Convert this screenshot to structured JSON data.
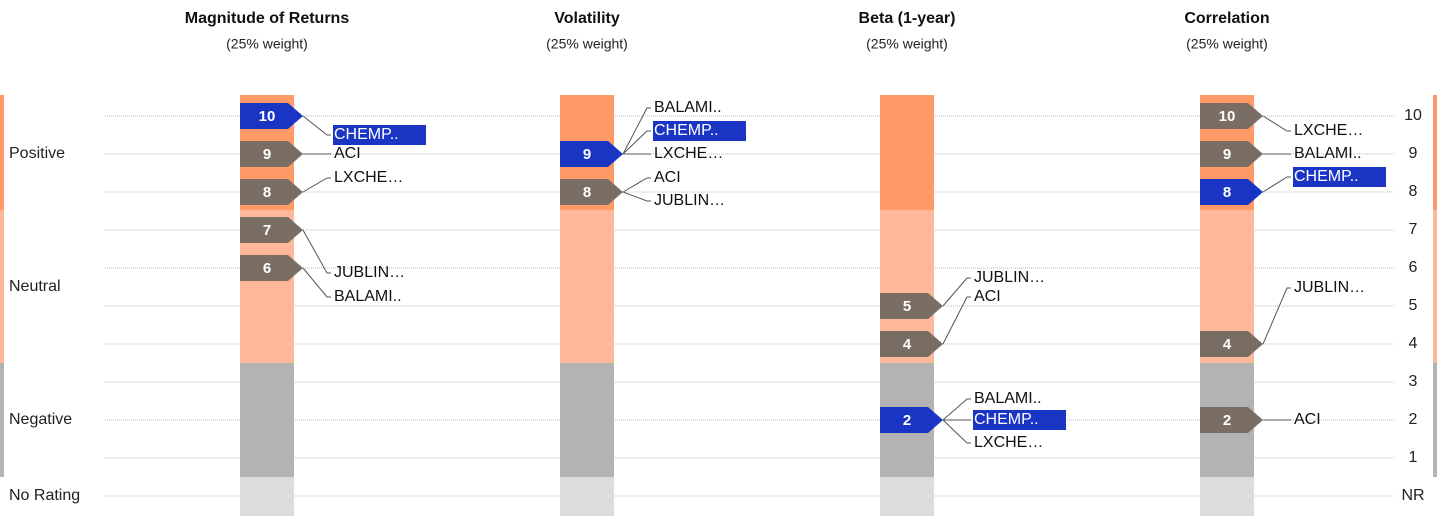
{
  "bands": [
    {
      "label": "Positive"
    },
    {
      "label": "Neutral"
    },
    {
      "label": "Negative"
    },
    {
      "label": "No Rating"
    }
  ],
  "scale_labels": [
    10,
    9,
    8,
    7,
    6,
    5,
    4,
    3,
    2,
    1,
    "NR"
  ],
  "columns": [
    {
      "title": "Magnitude of Returns",
      "subtitle": "(25% weight)",
      "groups": [
        {
          "score": 10,
          "color": "#1a35c4",
          "tickers": [
            {
              "name": "CHEMP..",
              "selected": true
            }
          ]
        },
        {
          "score": 9,
          "color": "#7a6e64",
          "tickers": [
            {
              "name": "ACI"
            }
          ]
        },
        {
          "score": 8,
          "color": "#7a6e64",
          "tickers": [
            {
              "name": "LXCHE…"
            }
          ]
        },
        {
          "score": 7,
          "color": "#7a6e64",
          "tickers": [
            {
              "name": "JUBLIN…"
            }
          ]
        },
        {
          "score": 6,
          "color": "#7a6e64",
          "tickers": [
            {
              "name": "BALAMI.."
            }
          ]
        }
      ]
    },
    {
      "title": "Volatility",
      "subtitle": "(25% weight)",
      "groups": [
        {
          "score": 9,
          "color": "#1a35c4",
          "tickers": [
            {
              "name": "BALAMI.."
            },
            {
              "name": "CHEMP..",
              "selected": true
            },
            {
              "name": "LXCHE…"
            }
          ]
        },
        {
          "score": 8,
          "color": "#7a6e64",
          "tickers": [
            {
              "name": "ACI"
            },
            {
              "name": "JUBLIN…"
            }
          ]
        }
      ]
    },
    {
      "title": "Beta (1-year)",
      "subtitle": "(25% weight)",
      "groups": [
        {
          "score": 5,
          "color": "#7a6e64",
          "tickers": [
            {
              "name": "JUBLIN…"
            }
          ]
        },
        {
          "score": 4,
          "color": "#7a6e64",
          "tickers": [
            {
              "name": "ACI"
            }
          ]
        },
        {
          "score": 2,
          "color": "#1a35c4",
          "tickers": [
            {
              "name": "BALAMI.."
            },
            {
              "name": "CHEMP..",
              "selected": true
            },
            {
              "name": "LXCHE…"
            }
          ]
        }
      ]
    },
    {
      "title": "Correlation",
      "subtitle": "(25% weight)",
      "groups": [
        {
          "score": 10,
          "color": "#7a6e64",
          "tickers": [
            {
              "name": "LXCHE…"
            }
          ]
        },
        {
          "score": 9,
          "color": "#7a6e64",
          "tickers": [
            {
              "name": "BALAMI.."
            }
          ]
        },
        {
          "score": 8,
          "color": "#1a35c4",
          "tickers": [
            {
              "name": "CHEMP..",
              "selected": true
            }
          ]
        },
        {
          "score": 4,
          "color": "#7a6e64",
          "tickers": [
            {
              "name": "JUBLIN…"
            }
          ]
        },
        {
          "score": 2,
          "color": "#7a6e64",
          "tickers": [
            {
              "name": "ACI"
            }
          ]
        }
      ]
    }
  ]
}
